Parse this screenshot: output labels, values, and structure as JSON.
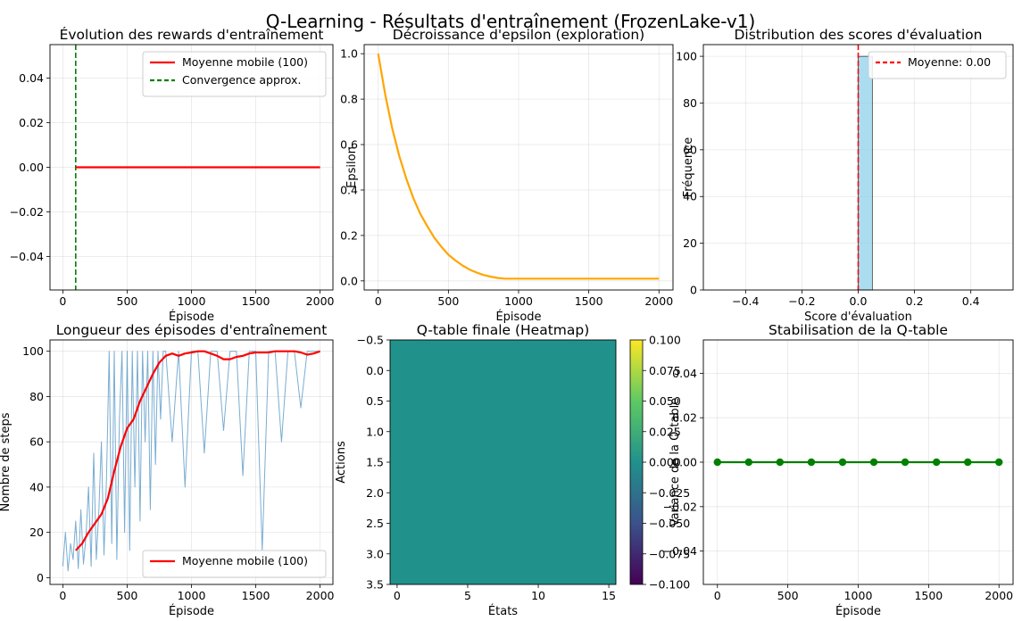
{
  "suptitle": "Q-Learning - Résultats d'entraînement (FrozenLake-v1)",
  "colors": {
    "red": "#ff0000",
    "green": "#008000",
    "orange": "#ffa500",
    "blue_fill": "#1f77b4",
    "hist_fill": "#87ceeb",
    "heat_zero": "#21918c"
  },
  "chart_data": [
    {
      "id": "rewards",
      "type": "line",
      "title": "Évolution des rewards d'entraînement",
      "xlabel": "Épisode",
      "ylabel": "",
      "xlim": [
        -100,
        2100
      ],
      "ylim": [
        -0.055,
        0.055
      ],
      "xticks": [
        0,
        500,
        1000,
        1500,
        2000
      ],
      "xtick_labels": [
        "0",
        "500",
        "1000",
        "1500",
        "2000"
      ],
      "yticks": [
        -0.04,
        -0.02,
        0.0,
        0.02,
        0.04
      ],
      "ytick_labels": [
        "−0.04",
        "−0.02",
        "0.00",
        "0.02",
        "0.04"
      ],
      "grid": true,
      "legend": "top-right",
      "series": [
        {
          "name": "Moyenne mobile (100)",
          "style": "solid",
          "color": "#ff0000",
          "x": [
            100,
            2000
          ],
          "y": [
            0,
            0
          ]
        }
      ],
      "vlines": [
        {
          "name": "Convergence approx.",
          "x": 100,
          "style": "dashed",
          "color": "#008000"
        }
      ]
    },
    {
      "id": "epsilon",
      "type": "line",
      "title": "Décroissance d'epsilon (exploration)",
      "xlabel": "Épisode",
      "ylabel": "Epsilon",
      "xlim": [
        -100,
        2100
      ],
      "ylim": [
        -0.04,
        1.04
      ],
      "xticks": [
        0,
        500,
        1000,
        1500,
        2000
      ],
      "xtick_labels": [
        "0",
        "500",
        "1000",
        "1500",
        "2000"
      ],
      "yticks": [
        0,
        0.2,
        0.4,
        0.6,
        0.8,
        1.0
      ],
      "ytick_labels": [
        "0.0",
        "0.2",
        "0.4",
        "0.6",
        "0.8",
        "1.0"
      ],
      "grid": true,
      "series": [
        {
          "name": "",
          "color": "#ffa500",
          "x": [
            0,
            50,
            100,
            150,
            200,
            250,
            300,
            350,
            400,
            450,
            500,
            550,
            600,
            650,
            700,
            750,
            800,
            850,
            900,
            920,
            1000,
            1500,
            2000
          ],
          "y": [
            1.0,
            0.82,
            0.67,
            0.55,
            0.45,
            0.365,
            0.295,
            0.24,
            0.19,
            0.15,
            0.115,
            0.09,
            0.068,
            0.05,
            0.037,
            0.026,
            0.019,
            0.013,
            0.01,
            0.01,
            0.01,
            0.01,
            0.01
          ]
        }
      ]
    },
    {
      "id": "hist",
      "type": "bar",
      "title": "Distribution des scores d'évaluation",
      "xlabel": "Score d'évaluation",
      "ylabel": "Fréquence",
      "xlim": [
        -0.55,
        0.55
      ],
      "ylim": [
        0,
        105
      ],
      "xticks": [
        -0.4,
        -0.2,
        0.0,
        0.2,
        0.4
      ],
      "xtick_labels": [
        "−0.4",
        "−0.2",
        "0.0",
        "0.2",
        "0.4"
      ],
      "yticks": [
        0,
        20,
        40,
        60,
        80,
        100
      ],
      "ytick_labels": [
        "0",
        "20",
        "40",
        "60",
        "80",
        "100"
      ],
      "grid": true,
      "legend": "top-right",
      "bins": [
        {
          "x0": 0.0,
          "x1": 0.05,
          "count": 100
        }
      ],
      "vlines": [
        {
          "name": "Moyenne: 0.00",
          "x": 0.0,
          "style": "dashed",
          "color": "#ff0000"
        }
      ]
    },
    {
      "id": "steps",
      "type": "line",
      "title": "Longueur des épisodes d'entraînement",
      "xlabel": "Épisode",
      "ylabel": "Nombre de steps",
      "xlim": [
        -100,
        2100
      ],
      "ylim": [
        -3,
        105
      ],
      "xticks": [
        0,
        500,
        1000,
        1500,
        2000
      ],
      "xtick_labels": [
        "0",
        "500",
        "1000",
        "1500",
        "2000"
      ],
      "yticks": [
        0,
        20,
        40,
        60,
        80,
        100
      ],
      "ytick_labels": [
        "0",
        "20",
        "40",
        "60",
        "80",
        "100"
      ],
      "grid": true,
      "legend": "bottom-right",
      "series": [
        {
          "name": "",
          "color": "#1f77b4",
          "x": [
            0,
            20,
            40,
            60,
            80,
            100,
            120,
            140,
            160,
            180,
            200,
            220,
            240,
            260,
            280,
            300,
            320,
            340,
            360,
            380,
            400,
            420,
            440,
            460,
            480,
            500,
            520,
            540,
            560,
            580,
            600,
            620,
            640,
            660,
            680,
            700,
            720,
            740,
            760,
            780,
            800,
            850,
            900,
            950,
            1000,
            1050,
            1100,
            1150,
            1200,
            1250,
            1300,
            1350,
            1400,
            1450,
            1500,
            1550,
            1600,
            1650,
            1700,
            1750,
            1800,
            1850,
            1900,
            1950,
            2000
          ],
          "y": [
            5,
            20,
            3,
            15,
            8,
            25,
            4,
            30,
            6,
            18,
            40,
            5,
            55,
            8,
            30,
            60,
            10,
            45,
            100,
            15,
            100,
            8,
            70,
            100,
            20,
            100,
            12,
            100,
            40,
            100,
            25,
            100,
            60,
            100,
            30,
            100,
            50,
            100,
            70,
            100,
            100,
            60,
            100,
            40,
            100,
            100,
            55,
            100,
            100,
            65,
            100,
            100,
            45,
            100,
            100,
            12,
            100,
            100,
            60,
            100,
            100,
            75,
            100,
            100,
            100
          ]
        },
        {
          "name": "Moyenne mobile (100)",
          "color": "#ff0000",
          "x": [
            100,
            150,
            200,
            250,
            300,
            350,
            400,
            450,
            500,
            550,
            600,
            650,
            700,
            750,
            800,
            850,
            900,
            950,
            1000,
            1050,
            1100,
            1150,
            1200,
            1250,
            1300,
            1350,
            1400,
            1450,
            1500,
            1550,
            1600,
            1650,
            1700,
            1750,
            1800,
            1850,
            1900,
            1950,
            2000
          ],
          "y": [
            12,
            15,
            20,
            24,
            28,
            35,
            47,
            58,
            66,
            70,
            78,
            84,
            90,
            95,
            98,
            99,
            98,
            99,
            99.5,
            100,
            100,
            99,
            98,
            96.5,
            96.5,
            97.5,
            98,
            99,
            99.5,
            99.5,
            99.5,
            100,
            100,
            100,
            100,
            99.5,
            98.5,
            99,
            100
          ]
        }
      ]
    },
    {
      "id": "heatmap",
      "type": "heatmap",
      "title": "Q-table finale (Heatmap)",
      "xlabel": "États",
      "ylabel": "Actions",
      "xlim": [
        -0.5,
        15.5
      ],
      "ylim": [
        3.5,
        -0.5
      ],
      "xticks": [
        0,
        5,
        10,
        15
      ],
      "xtick_labels": [
        "0",
        "5",
        "10",
        "15"
      ],
      "yticks": [
        -0.5,
        0.0,
        0.5,
        1.0,
        1.5,
        2.0,
        2.5,
        3.0,
        3.5
      ],
      "ytick_labels": [
        "−0.5",
        "0.0",
        "0.5",
        "1.0",
        "1.5",
        "2.0",
        "2.5",
        "3.0",
        "3.5"
      ],
      "rows": 4,
      "cols": 16,
      "value": 0.0,
      "colorbar": {
        "label": "Valeur de la Q-table",
        "ticks": [
          -0.1,
          -0.075,
          -0.05,
          -0.025,
          0.0,
          0.025,
          0.05,
          0.075,
          0.1
        ],
        "tick_labels": [
          "−0.100",
          "−0.075",
          "−0.050",
          "−0.025",
          "0.000",
          "0.025",
          "0.050",
          "0.075",
          "0.100"
        ],
        "colormap": "viridis"
      }
    },
    {
      "id": "stab",
      "type": "line",
      "title": "Stabilisation de la Q-table",
      "xlabel": "Épisode",
      "ylabel": "Variance de la Q-table",
      "xlim": [
        -100,
        2100
      ],
      "ylim": [
        -0.055,
        0.055
      ],
      "xticks": [
        0,
        500,
        1000,
        1500,
        2000
      ],
      "xtick_labels": [
        "0",
        "500",
        "1000",
        "1500",
        "2000"
      ],
      "yticks": [
        -0.04,
        -0.02,
        0.0,
        0.02,
        0.04
      ],
      "ytick_labels": [
        "−0.04",
        "−0.02",
        "0.00",
        "0.02",
        "0.04"
      ],
      "grid": true,
      "series": [
        {
          "name": "",
          "color": "#008000",
          "markers": true,
          "x": [
            0,
            222,
            444,
            667,
            889,
            1111,
            1333,
            1556,
            1778,
            2000
          ],
          "y": [
            0,
            0,
            0,
            0,
            0,
            0,
            0,
            0,
            0,
            0
          ]
        }
      ]
    }
  ]
}
